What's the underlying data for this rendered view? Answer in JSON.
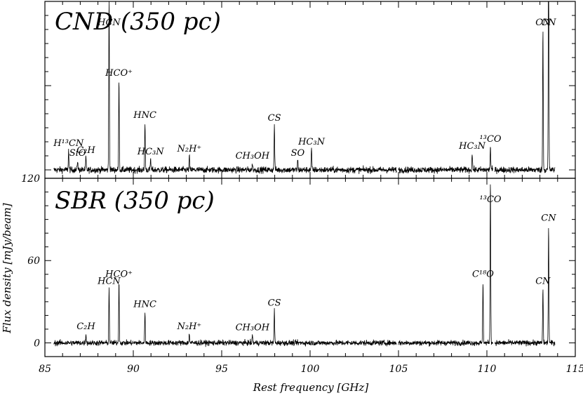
{
  "chart_data": {
    "type": "line",
    "xlabel": "Rest frequency [GHz]",
    "ylabel": "Flux density [mJy/beam]",
    "xlim": [
      85,
      115
    ],
    "x_ticks": [
      "85",
      "90",
      "95",
      "100",
      "105",
      "110",
      "115"
    ],
    "grid": false,
    "panels": [
      {
        "title": "CND (350 pc)",
        "ylim": [
          -6,
          120
        ],
        "y_ticks": [],
        "noise": 1.6,
        "lines": [
          {
            "label": "H13CN",
            "text": "H¹³CN",
            "freq": 86.34,
            "peak": 14
          },
          {
            "label": "SiO",
            "text": "SiO",
            "freq": 86.85,
            "peak": 7
          },
          {
            "label": "C2H",
            "text": "C₂H",
            "freq": 87.32,
            "peak": 9
          },
          {
            "label": "HCN",
            "text": "HCN",
            "freq": 88.63,
            "peak": 128
          },
          {
            "label": "HCO+",
            "text": "HCO⁺",
            "freq": 89.19,
            "peak": 64
          },
          {
            "label": "HNC",
            "text": "HNC",
            "freq": 90.66,
            "peak": 34
          },
          {
            "label": "HC3N",
            "text": "HC₃N",
            "freq": 90.98,
            "peak": 8
          },
          {
            "label": "N2H+",
            "text": "N₂H⁺",
            "freq": 93.17,
            "peak": 10
          },
          {
            "label": "CH3OH",
            "text": "CH₃OH",
            "freq": 96.74,
            "peak": 5
          },
          {
            "label": "CS",
            "text": "CS",
            "freq": 97.98,
            "peak": 32
          },
          {
            "label": "SO",
            "text": "SO",
            "freq": 99.3,
            "peak": 7
          },
          {
            "label": "HC3N",
            "text": "HC₃N",
            "freq": 100.08,
            "peak": 15
          },
          {
            "label": "HC3N",
            "text": "HC₃N",
            "freq": 109.17,
            "peak": 12
          },
          {
            "label": "13CO",
            "text": "¹³CO",
            "freq": 110.2,
            "peak": 17
          },
          {
            "label": "CN",
            "text": "CN",
            "freq": 113.17,
            "peak": 100
          },
          {
            "label": "CN",
            "text": "CN",
            "freq": 113.49,
            "peak": 180
          }
        ]
      },
      {
        "title": "SBR (350 pc)",
        "ylim": [
          -10,
          120
        ],
        "y_ticks": [
          "0",
          "60",
          "120"
        ],
        "noise": 1.4,
        "lines": [
          {
            "label": "C2H",
            "text": "C₂H",
            "freq": 87.32,
            "peak": 7
          },
          {
            "label": "HCN",
            "text": "HCN",
            "freq": 88.63,
            "peak": 40
          },
          {
            "label": "HCO+",
            "text": "HCO⁺",
            "freq": 89.19,
            "peak": 45
          },
          {
            "label": "HNC",
            "text": "HNC",
            "freq": 90.66,
            "peak": 23
          },
          {
            "label": "N2H+",
            "text": "N₂H⁺",
            "freq": 93.17,
            "peak": 7
          },
          {
            "label": "CH3OH",
            "text": "CH₃OH",
            "freq": 96.74,
            "peak": 6
          },
          {
            "label": "CS",
            "text": "CS",
            "freq": 97.98,
            "peak": 24
          },
          {
            "label": "C18O",
            "text": "C¹⁸O",
            "freq": 109.78,
            "peak": 45
          },
          {
            "label": "13CO",
            "text": "¹³CO",
            "freq": 110.2,
            "peak": 120
          },
          {
            "label": "CN",
            "text": "CN",
            "freq": 113.17,
            "peak": 40
          },
          {
            "label": "CN",
            "text": "CN",
            "freq": 113.49,
            "peak": 86
          }
        ]
      }
    ]
  }
}
